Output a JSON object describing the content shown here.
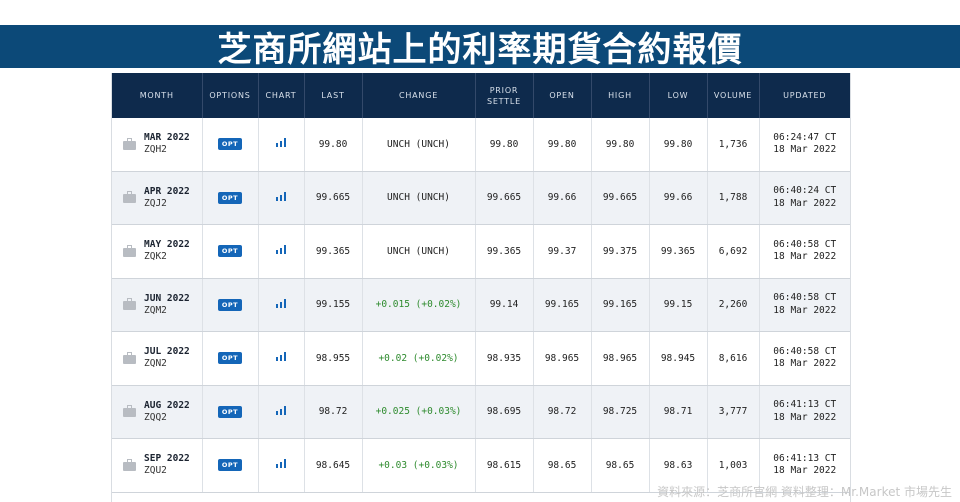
{
  "banner": {
    "title": "芝商所網站上的利率期貨合約報價"
  },
  "table": {
    "headers": {
      "month": "MONTH",
      "options": "OPTIONS",
      "chart": "CHART",
      "last": "LAST",
      "change": "CHANGE",
      "prior_settle_line1": "PRIOR",
      "prior_settle_line2": "SETTLE",
      "open": "OPEN",
      "high": "HIGH",
      "low": "LOW",
      "volume": "VOLUME",
      "updated": "UPDATED"
    },
    "opt_label": "OPT",
    "icons": {
      "month_icon": "briefcase-icon",
      "chart_icon": "bar-chart-icon"
    },
    "colors": {
      "header_bg": "#0e2a4c",
      "opt_badge": "#1466b8",
      "positive_change": "#2e8b2e",
      "banner_bg": "#0c4978"
    },
    "rows": [
      {
        "month": "MAR 2022",
        "code": "ZQH2",
        "last": "99.80",
        "change": "UNCH (UNCH)",
        "change_dir": "flat",
        "prior_settle": "99.80",
        "open": "99.80",
        "high": "99.80",
        "low": "99.80",
        "volume": "1,736",
        "time": "06:24:47 CT",
        "date": "18 Mar 2022"
      },
      {
        "month": "APR 2022",
        "code": "ZQJ2",
        "last": "99.665",
        "change": "UNCH (UNCH)",
        "change_dir": "flat",
        "prior_settle": "99.665",
        "open": "99.66",
        "high": "99.665",
        "low": "99.66",
        "volume": "1,788",
        "time": "06:40:24 CT",
        "date": "18 Mar 2022"
      },
      {
        "month": "MAY 2022",
        "code": "ZQK2",
        "last": "99.365",
        "change": "UNCH (UNCH)",
        "change_dir": "flat",
        "prior_settle": "99.365",
        "open": "99.37",
        "high": "99.375",
        "low": "99.365",
        "volume": "6,692",
        "time": "06:40:58 CT",
        "date": "18 Mar 2022"
      },
      {
        "month": "JUN 2022",
        "code": "ZQM2",
        "last": "99.155",
        "change": "+0.015 (+0.02%)",
        "change_dir": "up",
        "prior_settle": "99.14",
        "open": "99.165",
        "high": "99.165",
        "low": "99.15",
        "volume": "2,260",
        "time": "06:40:58 CT",
        "date": "18 Mar 2022"
      },
      {
        "month": "JUL 2022",
        "code": "ZQN2",
        "last": "98.955",
        "change": "+0.02 (+0.02%)",
        "change_dir": "up",
        "prior_settle": "98.935",
        "open": "98.965",
        "high": "98.965",
        "low": "98.945",
        "volume": "8,616",
        "time": "06:40:58 CT",
        "date": "18 Mar 2022"
      },
      {
        "month": "AUG 2022",
        "code": "ZQQ2",
        "last": "98.72",
        "change": "+0.025 (+0.03%)",
        "change_dir": "up",
        "prior_settle": "98.695",
        "open": "98.72",
        "high": "98.725",
        "low": "98.71",
        "volume": "3,777",
        "time": "06:41:13 CT",
        "date": "18 Mar 2022"
      },
      {
        "month": "SEP 2022",
        "code": "ZQU2",
        "last": "98.645",
        "change": "+0.03 (+0.03%)",
        "change_dir": "up",
        "prior_settle": "98.615",
        "open": "98.65",
        "high": "98.65",
        "low": "98.63",
        "volume": "1,003",
        "time": "06:41:13 CT",
        "date": "18 Mar 2022"
      }
    ]
  },
  "footer": {
    "source_note": "資料來源：芝商所官網 資料整理：Mr.Market 市場先生"
  }
}
